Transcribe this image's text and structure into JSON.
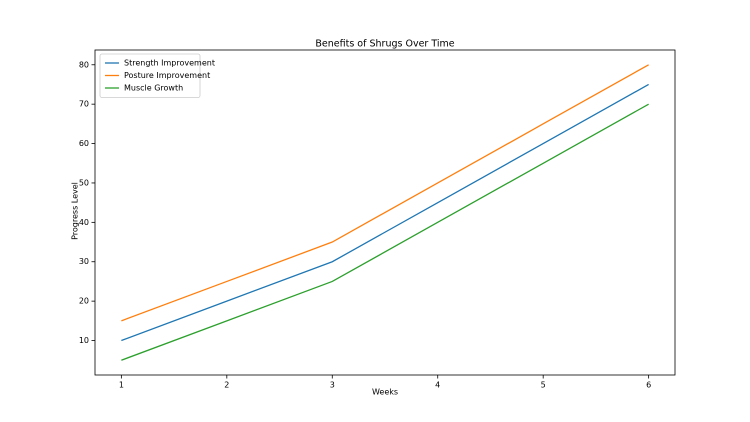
{
  "chart_data": {
    "type": "line",
    "title": "Benefits of Shrugs Over Time",
    "x_label": "Weeks",
    "y_label": "Progress Level",
    "x": [
      1,
      2,
      3,
      4,
      5,
      6
    ],
    "series": [
      {
        "name": "Strength Improvement",
        "color": "#1f77b4",
        "values": [
          10,
          20,
          30,
          45,
          60,
          75
        ]
      },
      {
        "name": "Posture Improvement",
        "color": "#ff7f0e",
        "values": [
          15,
          25,
          35,
          50,
          65,
          80
        ]
      },
      {
        "name": "Muscle Growth",
        "color": "#2ca02c",
        "values": [
          5,
          15,
          25,
          40,
          55,
          70
        ]
      }
    ],
    "xlim": [
      0.75,
      6.25
    ],
    "ylim": [
      1.25,
      83.75
    ],
    "xticks": [
      1,
      2,
      3,
      4,
      5,
      6
    ],
    "yticks": [
      10,
      20,
      30,
      40,
      50,
      60,
      70,
      80
    ],
    "legend": "upper left"
  }
}
